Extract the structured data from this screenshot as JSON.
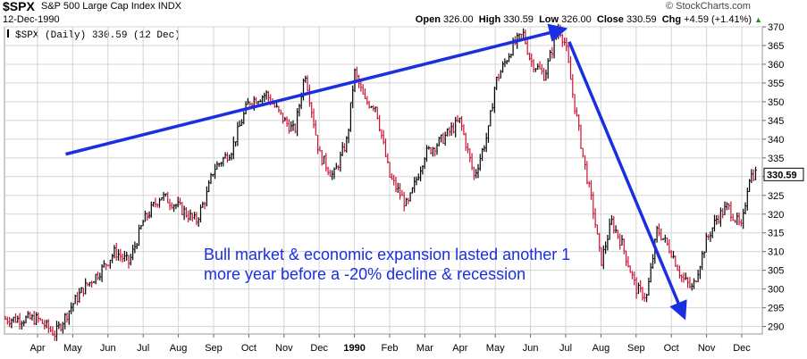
{
  "header": {
    "symbol": "$SPX",
    "name": "S&P 500 Large Cap Index",
    "exchange": "INDX",
    "date": "12-Dec-1990",
    "watermark": "© StockCharts.com",
    "open_label": "Open",
    "open": "326.00",
    "high_label": "High",
    "high": "330.59",
    "low_label": "Low",
    "low": "326.00",
    "close_label": "Close",
    "close": "330.59",
    "chg_label": "Chg",
    "chg": "+4.59 (+1.41%)",
    "chg_icon": "up-triangle-icon"
  },
  "legend": {
    "text": "$SPX (Daily) 330.59 (12 Dec)"
  },
  "annotation": {
    "text": "Bull market & economic expansion lasted another 1 more year before a -20% decline & recession"
  },
  "colors": {
    "up": "#000000",
    "down": "#cc1133",
    "arrow": "#1a2fe0",
    "grid": "#d4d4d4"
  },
  "chart_data": {
    "type": "line",
    "title": "$SPX S&P 500 Large Cap Index (Daily)",
    "xlabel": "",
    "ylabel": "",
    "ylim": [
      288,
      370
    ],
    "y_ticks": [
      290,
      295,
      300,
      305,
      310,
      315,
      320,
      325,
      330,
      335,
      340,
      345,
      350,
      355,
      360,
      365,
      370
    ],
    "x_ticks": [
      "Apr",
      "May",
      "Jun",
      "Jul",
      "Aug",
      "Sep",
      "Oct",
      "Nov",
      "Dec",
      "1990",
      "Feb",
      "Mar",
      "Apr",
      "May",
      "Jun",
      "Jul",
      "Aug",
      "Sep",
      "Oct",
      "Nov",
      "Dec"
    ],
    "last_value_label": "330.59",
    "series": [
      {
        "name": "$SPX Daily Close",
        "x": [
          0,
          0.5,
          1,
          1.3,
          1.8,
          2.2,
          2.6,
          3,
          3.5,
          4,
          4.5,
          4.8,
          5,
          5.5,
          5.8,
          6,
          6.5,
          7,
          7.3,
          7.6,
          8,
          8.4,
          8.8,
          9,
          9.3,
          9.6,
          10,
          10.5,
          11,
          11.5,
          12,
          12.4,
          12.8,
          13,
          13.5,
          13.8,
          14,
          14.4,
          14.8,
          15,
          15.2,
          15.5,
          15.8,
          16,
          16.3,
          16.6,
          17,
          17.3,
          17.6,
          18,
          18.3,
          18.6,
          19,
          19.3,
          19.6,
          20,
          20.2,
          20.4
        ],
        "values": [
          292,
          288,
          296,
          300,
          305,
          310,
          307,
          318,
          325,
          322,
          318,
          325,
          332,
          337,
          345,
          350,
          352,
          345,
          342,
          358,
          336,
          330,
          340,
          358,
          350,
          349,
          330,
          322,
          336,
          340,
          345,
          330,
          342,
          355,
          365,
          368,
          361,
          357,
          370,
          365,
          352,
          335,
          320,
          307,
          318,
          312,
          300,
          298,
          316,
          310,
          303,
          300,
          313,
          319,
          322,
          316,
          330,
          331
        ],
        "color": "#000000"
      }
    ],
    "arrows": [
      {
        "from": [
          0.8,
          336
        ],
        "to": [
          14.8,
          369
        ],
        "label": ""
      },
      {
        "from": [
          15.1,
          366
        ],
        "to": [
          18.3,
          294
        ],
        "label": ""
      }
    ]
  }
}
